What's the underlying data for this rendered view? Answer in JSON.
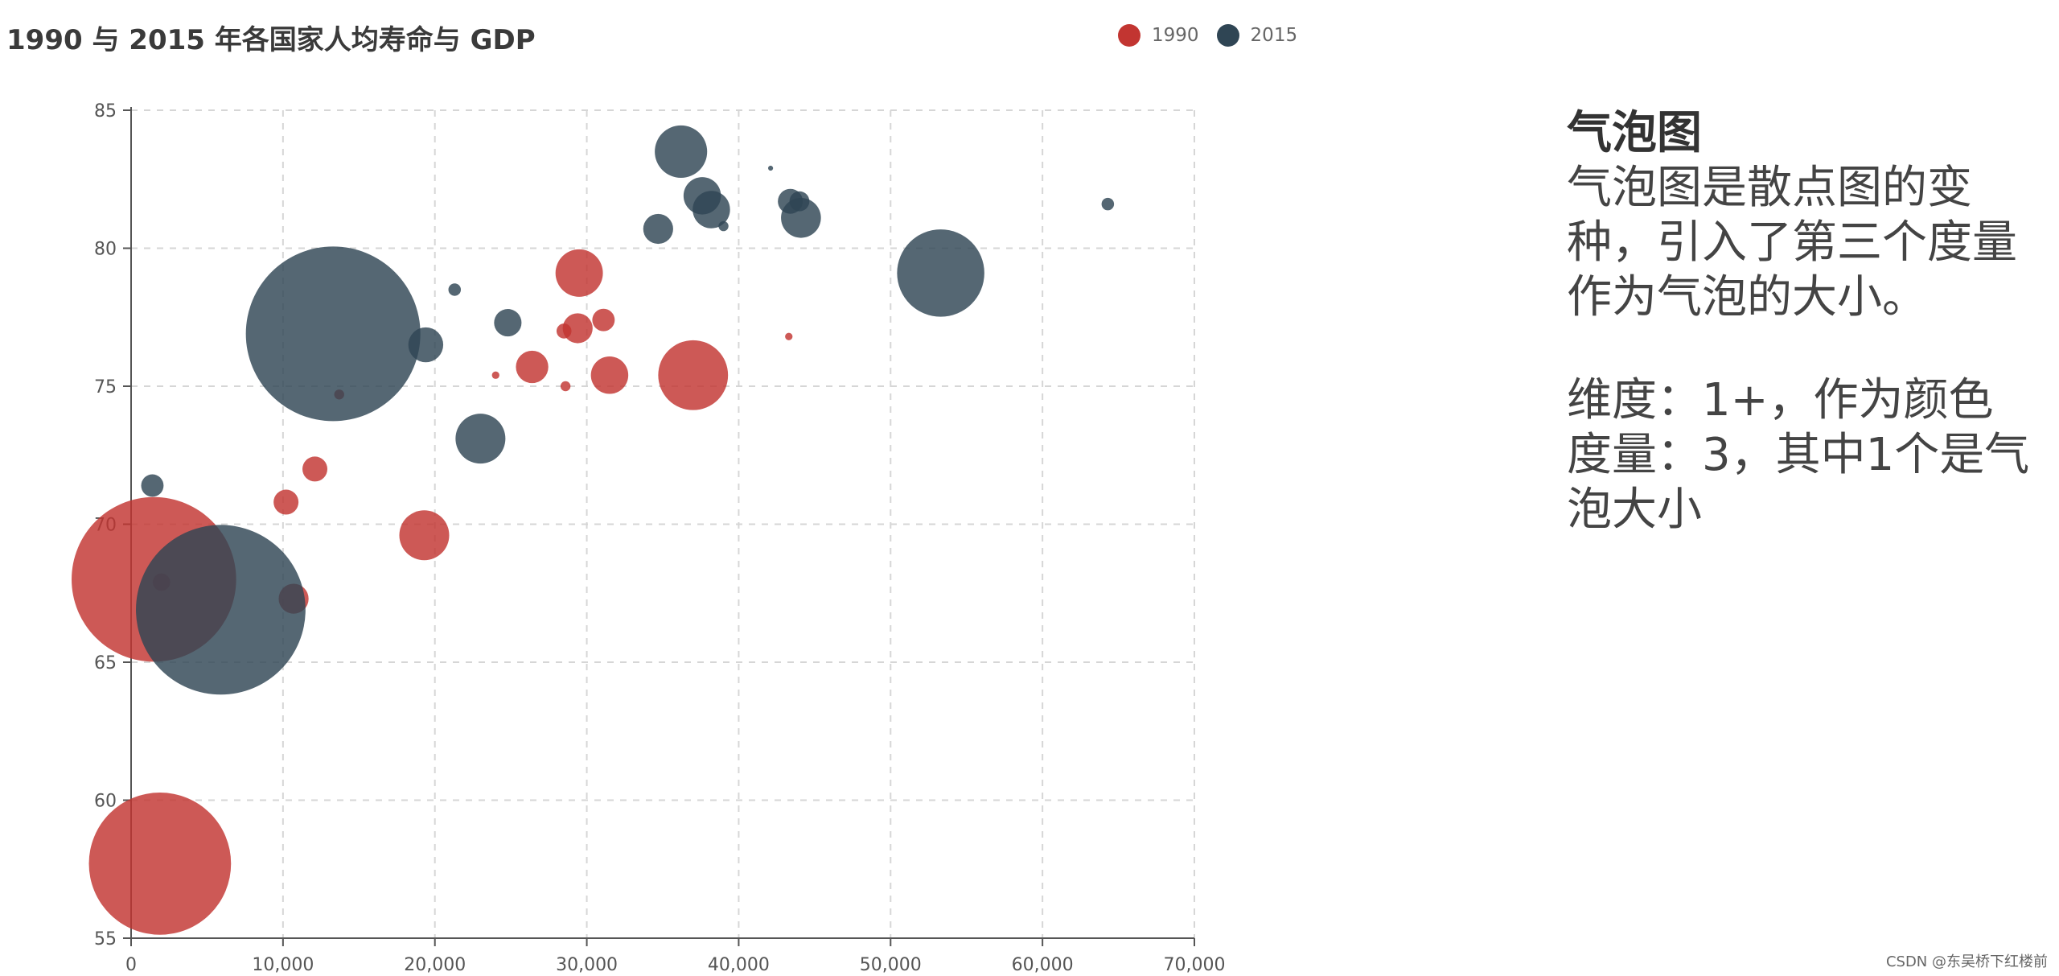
{
  "chart_data": {
    "type": "scatter",
    "title": "1990 与 2015 年各国家人均寿命与 GDP",
    "xlabel": "",
    "ylabel": "",
    "xlim": [
      0,
      70000
    ],
    "ylim": [
      55,
      85
    ],
    "x_ticks": [
      0,
      10000,
      20000,
      30000,
      40000,
      50000,
      60000,
      70000
    ],
    "x_tick_labels": [
      "0",
      "10,000",
      "20,000",
      "30,000",
      "40,000",
      "50,000",
      "60,000",
      "70,000"
    ],
    "y_ticks": [
      55,
      60,
      65,
      70,
      75,
      80,
      85
    ],
    "y_tick_labels": [
      "55",
      "60",
      "65",
      "70",
      "75",
      "80",
      "85"
    ],
    "grid": true,
    "legend_position": "top-right",
    "series": [
      {
        "name": "1990",
        "color": "#c23531",
        "points": [
          {
            "x": 1500,
            "y": 68.0,
            "size": 66
          },
          {
            "x": 1900,
            "y": 57.7,
            "size": 57
          },
          {
            "x": 2000,
            "y": 67.9,
            "size": 7
          },
          {
            "x": 10700,
            "y": 67.3,
            "size": 12
          },
          {
            "x": 10200,
            "y": 70.8,
            "size": 10
          },
          {
            "x": 12100,
            "y": 72.0,
            "size": 10
          },
          {
            "x": 13700,
            "y": 74.7,
            "size": 4
          },
          {
            "x": 19300,
            "y": 69.6,
            "size": 20
          },
          {
            "x": 24000,
            "y": 75.4,
            "size": 3
          },
          {
            "x": 26400,
            "y": 75.7,
            "size": 13
          },
          {
            "x": 28500,
            "y": 77.0,
            "size": 6
          },
          {
            "x": 28600,
            "y": 75.0,
            "size": 4
          },
          {
            "x": 29400,
            "y": 77.1,
            "size": 12
          },
          {
            "x": 29500,
            "y": 79.1,
            "size": 19
          },
          {
            "x": 31100,
            "y": 77.4,
            "size": 9
          },
          {
            "x": 31500,
            "y": 75.4,
            "size": 15
          },
          {
            "x": 37000,
            "y": 75.4,
            "size": 28
          },
          {
            "x": 43300,
            "y": 76.8,
            "size": 3
          }
        ]
      },
      {
        "name": "2015",
        "color": "#2f4554",
        "points": [
          {
            "x": 1400,
            "y": 71.4,
            "size": 9
          },
          {
            "x": 5900,
            "y": 66.9,
            "size": 68
          },
          {
            "x": 13300,
            "y": 76.9,
            "size": 70
          },
          {
            "x": 19400,
            "y": 76.5,
            "size": 14
          },
          {
            "x": 21300,
            "y": 78.5,
            "size": 5
          },
          {
            "x": 23000,
            "y": 73.1,
            "size": 20
          },
          {
            "x": 24800,
            "y": 77.3,
            "size": 11
          },
          {
            "x": 34700,
            "y": 80.7,
            "size": 12
          },
          {
            "x": 36200,
            "y": 83.5,
            "size": 21
          },
          {
            "x": 37600,
            "y": 81.9,
            "size": 15
          },
          {
            "x": 38200,
            "y": 81.4,
            "size": 15
          },
          {
            "x": 39000,
            "y": 80.8,
            "size": 4
          },
          {
            "x": 42100,
            "y": 82.9,
            "size": 2
          },
          {
            "x": 43400,
            "y": 81.7,
            "size": 10
          },
          {
            "x": 44000,
            "y": 81.7,
            "size": 8
          },
          {
            "x": 44100,
            "y": 81.1,
            "size": 16
          },
          {
            "x": 53300,
            "y": 79.1,
            "size": 35
          },
          {
            "x": 64300,
            "y": 81.6,
            "size": 5
          }
        ]
      }
    ]
  },
  "side_panel": {
    "heading": "气泡图",
    "paragraph1": "气泡图是散点图的变种，引入了第三个度量作为气泡的大小。",
    "paragraph2_line1": "维度：1+，作为颜色",
    "paragraph2_line2": "度量：3，其中1个是气泡大小"
  },
  "watermark": "CSDN @东吴桥下红楼前"
}
